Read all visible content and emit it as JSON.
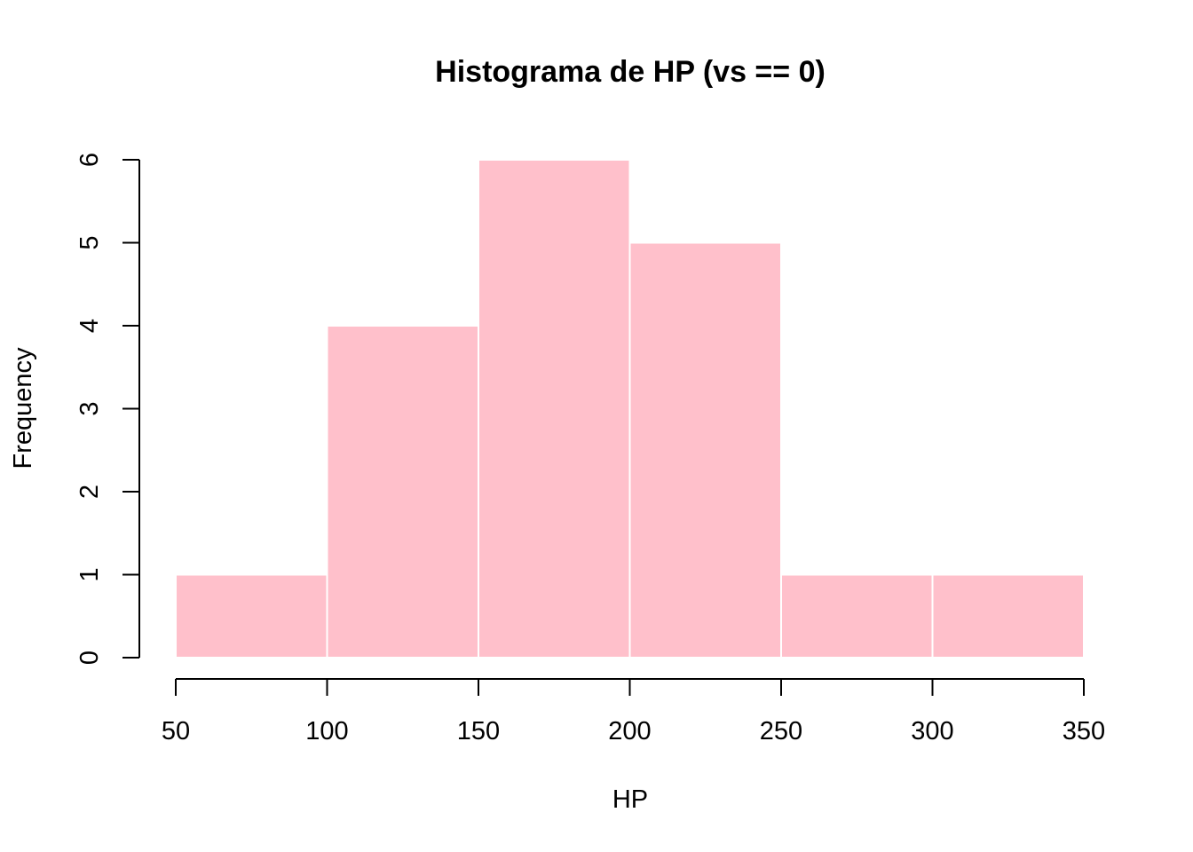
{
  "chart_data": {
    "type": "bar",
    "title": "Histograma de HP (vs == 0)",
    "xlabel": "HP",
    "ylabel": "Frequency",
    "bins": [
      {
        "from": 50,
        "to": 100,
        "count": 1
      },
      {
        "from": 100,
        "to": 150,
        "count": 4
      },
      {
        "from": 150,
        "to": 200,
        "count": 6
      },
      {
        "from": 200,
        "to": 250,
        "count": 5
      },
      {
        "from": 250,
        "to": 300,
        "count": 1
      },
      {
        "from": 300,
        "to": 350,
        "count": 1
      }
    ],
    "xlim": [
      50,
      350
    ],
    "ylim": [
      0,
      6
    ],
    "x_ticks": [
      50,
      100,
      150,
      200,
      250,
      300,
      350
    ],
    "y_ticks": [
      0,
      1,
      2,
      3,
      4,
      5,
      6
    ],
    "bar_color": "#FFC0CB",
    "bar_border_color": "#FFFFFF",
    "grid": false
  }
}
